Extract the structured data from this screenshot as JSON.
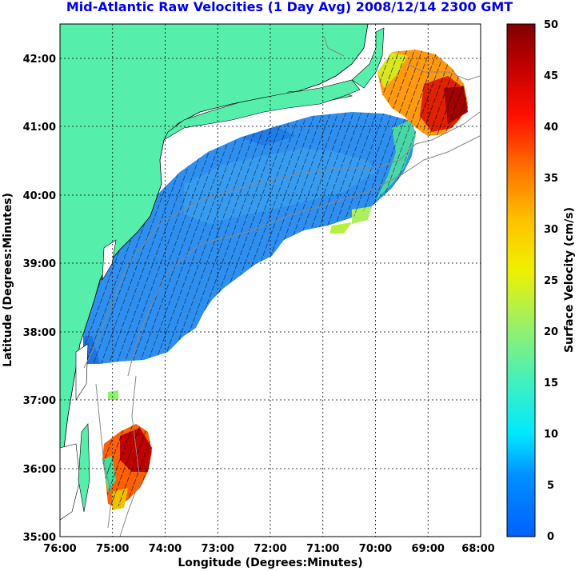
{
  "title": "Mid-Atlantic Raw Velocities (1 Day Avg) 2008/12/14 2300 GMT",
  "map": {
    "xlabel": "Longitude (Degrees:Minutes)",
    "ylabel": "Latitude (Degrees:Minutes)",
    "lon_ticks": [
      "76:00",
      "75:00",
      "74:00",
      "73:00",
      "72:00",
      "71:00",
      "70:00",
      "69:00",
      "68:00"
    ],
    "lat_ticks": [
      "42:00",
      "41:00",
      "40:00",
      "39:00",
      "38:00",
      "37:00",
      "36:00",
      "35:00"
    ],
    "lon_range": [
      -76,
      -68
    ],
    "lat_range": [
      35,
      42.5
    ],
    "land_color": "#55eeaa",
    "grid": true
  },
  "colorbar": {
    "label": "Surface Velocity (cm/s)",
    "ticks": [
      "50",
      "45",
      "40",
      "35",
      "30",
      "25",
      "20",
      "15",
      "10",
      "5",
      "0"
    ],
    "range": [
      0,
      50
    ]
  }
}
